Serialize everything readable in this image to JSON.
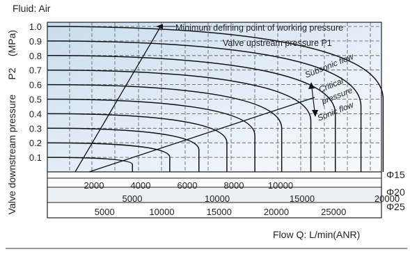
{
  "chart_data": {
    "type": "line",
    "title": "Fluid: Air",
    "unit_label": "(MPa)",
    "ylabel_symbol": "P2",
    "ylabel": "Valve downstream pressure",
    "xlabel": "Flow Q: L/min(ANR)",
    "ylim": [
      0,
      1.0
    ],
    "y_ticks": [
      "0.1",
      "0.2",
      "0.3",
      "0.4",
      "0.5",
      "0.6",
      "0.7",
      "0.8",
      "0.9",
      "1.0"
    ],
    "grid": true,
    "x_scales": [
      {
        "name": "Φ15",
        "ticks": [
          "2000",
          "4000",
          "6000",
          "8000",
          "10000"
        ],
        "values": [
          2000,
          4000,
          6000,
          8000,
          10000
        ]
      },
      {
        "name": "Φ20",
        "ticks": [
          "5000",
          "10000",
          "15000",
          "20000"
        ],
        "values": [
          5000,
          10000,
          15000,
          20000
        ]
      },
      {
        "name": "Φ25",
        "ticks": [
          "5000",
          "10000",
          "15000",
          "20000",
          "25000"
        ],
        "values": [
          5000,
          10000,
          15000,
          20000,
          25000
        ]
      }
    ],
    "xlim_phi15": [
      0,
      14000
    ],
    "series": [
      {
        "p1": 0.1,
        "max_flow_phi15": 3650
      },
      {
        "p1": 0.2,
        "max_flow_phi15": 5250
      },
      {
        "p1": 0.3,
        "max_flow_phi15": 6500
      },
      {
        "p1": 0.4,
        "max_flow_phi15": 7700
      },
      {
        "p1": 0.5,
        "max_flow_phi15": 8900
      },
      {
        "p1": 0.6,
        "max_flow_phi15": 10050
      },
      {
        "p1": 0.7,
        "max_flow_phi15": 11300
      },
      {
        "p1": 0.8,
        "max_flow_phi15": 12350
      },
      {
        "p1": 0.9,
        "max_flow_phi15": 13450
      },
      {
        "p1": 1.0,
        "max_flow_phi15": 14400
      }
    ],
    "annotations": {
      "min_point": "Minimum defining point of working pressure",
      "upstream": "Valve upstream pressure P1",
      "subsonic": "Subsonic flow",
      "critical_1": "Critical",
      "critical_2": "pressure",
      "sonic": "Sonic flow"
    }
  }
}
